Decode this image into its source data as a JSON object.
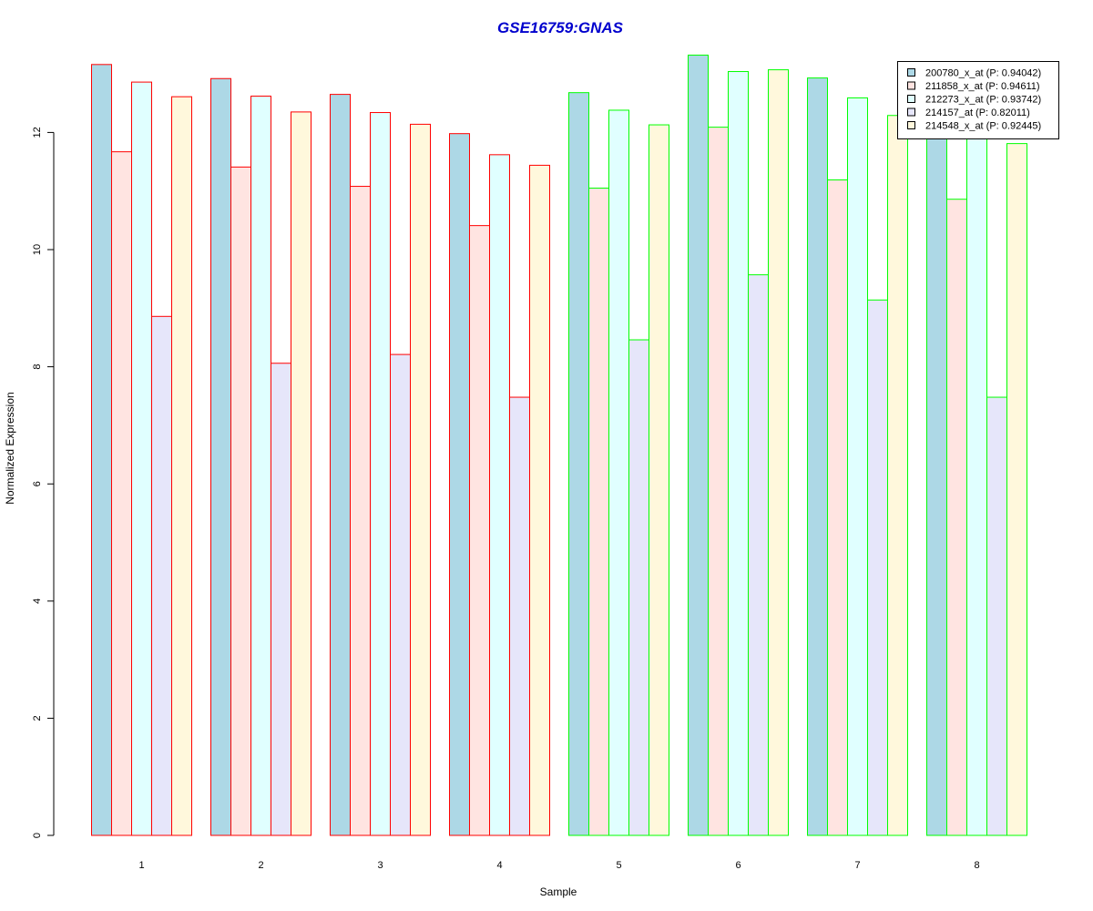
{
  "chart_data": {
    "type": "bar",
    "title": "GSE16759:GNAS",
    "xlabel": "Sample",
    "ylabel": "Normalized Expression",
    "categories": [
      "1",
      "2",
      "3",
      "4",
      "5",
      "6",
      "7",
      "8"
    ],
    "ylim": [
      0,
      13.5
    ],
    "yticks": [
      "0",
      "2",
      "4",
      "6",
      "8",
      "10",
      "12"
    ],
    "grid": false,
    "legend_position": "top-right",
    "series": [
      {
        "name": "200780_x_at (P: 0.94042)",
        "fill": "#add8e6",
        "values": [
          13.16,
          12.92,
          12.65,
          11.98,
          12.68,
          13.32,
          12.93,
          12.02
        ]
      },
      {
        "name": "211858_x_at (P: 0.94611)",
        "fill": "#ffe4e1",
        "values": [
          11.67,
          11.41,
          11.08,
          10.41,
          11.05,
          12.09,
          11.19,
          10.86
        ]
      },
      {
        "name": "212273_x_at (P: 0.93742)",
        "fill": "#e0ffff",
        "values": [
          12.86,
          12.62,
          12.34,
          11.62,
          12.38,
          13.04,
          12.59,
          12.0
        ]
      },
      {
        "name": "214157_at (P: 0.82011)",
        "fill": "#e6e6fa",
        "values": [
          8.86,
          8.06,
          8.21,
          7.48,
          8.46,
          9.57,
          9.14,
          7.48
        ]
      },
      {
        "name": "214548_x_at (P: 0.92445)",
        "fill": "#fff8dc",
        "values": [
          12.61,
          12.35,
          12.14,
          11.44,
          12.13,
          13.07,
          12.29,
          11.81
        ]
      }
    ],
    "group_border_colors": [
      "#ff0000",
      "#ff0000",
      "#ff0000",
      "#ff0000",
      "#00ff00",
      "#00ff00",
      "#00ff00",
      "#00ff00"
    ],
    "title_color": "#0000cd"
  }
}
